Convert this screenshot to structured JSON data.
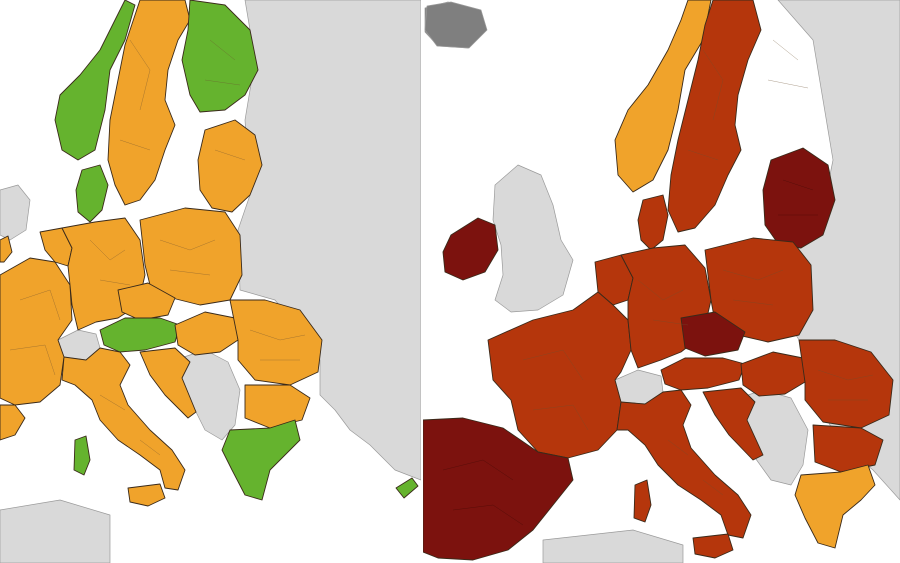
{
  "colors": {
    "sea": "#ffffff",
    "non_member": "#d9d9d9",
    "no_data": "#7f7f7f",
    "green": "#65b32e",
    "orange": "#f0a32b",
    "red": "#b5360c",
    "dark_red": "#7c120e"
  },
  "maps": [
    {
      "id": "earlier",
      "regions": {
        "iberia": "orange",
        "france": "orange",
        "benelux": "orange",
        "uk": "non_member",
        "ireland": "orange",
        "germany": "orange",
        "poland": "orange",
        "czechia": "orange",
        "austria": "green",
        "switzerland": "non_member",
        "italy": "orange",
        "sardinia": "green",
        "sicily": "orange",
        "balkans_member": "orange",
        "hungary": "orange",
        "romania": "orange",
        "bulgaria": "orange",
        "greece": "green",
        "norway": "green",
        "sweden": "orange",
        "finland": "green",
        "baltics": "orange",
        "denmark": "green",
        "western_balkans": "non_member",
        "eastern_europe": "non_member",
        "cyprus": "green"
      }
    },
    {
      "id": "later",
      "regions": {
        "iberia": "dark_red",
        "france": "red",
        "benelux": "red",
        "uk": "non_member",
        "ireland": "dark_red",
        "germany": "red",
        "poland": "red",
        "czechia": "dark_red",
        "austria": "red",
        "switzerland": "non_member",
        "italy": "red",
        "sardinia": "red",
        "sicily": "red",
        "balkans_member": "red",
        "hungary": "red",
        "romania": "red",
        "bulgaria": "red",
        "greece": "orange",
        "norway": "orange",
        "sweden": "red",
        "finland": "orange",
        "baltics": "dark_red",
        "denmark": "red",
        "western_balkans": "non_member",
        "eastern_europe": "non_member",
        "iceland": "no_data"
      }
    }
  ]
}
